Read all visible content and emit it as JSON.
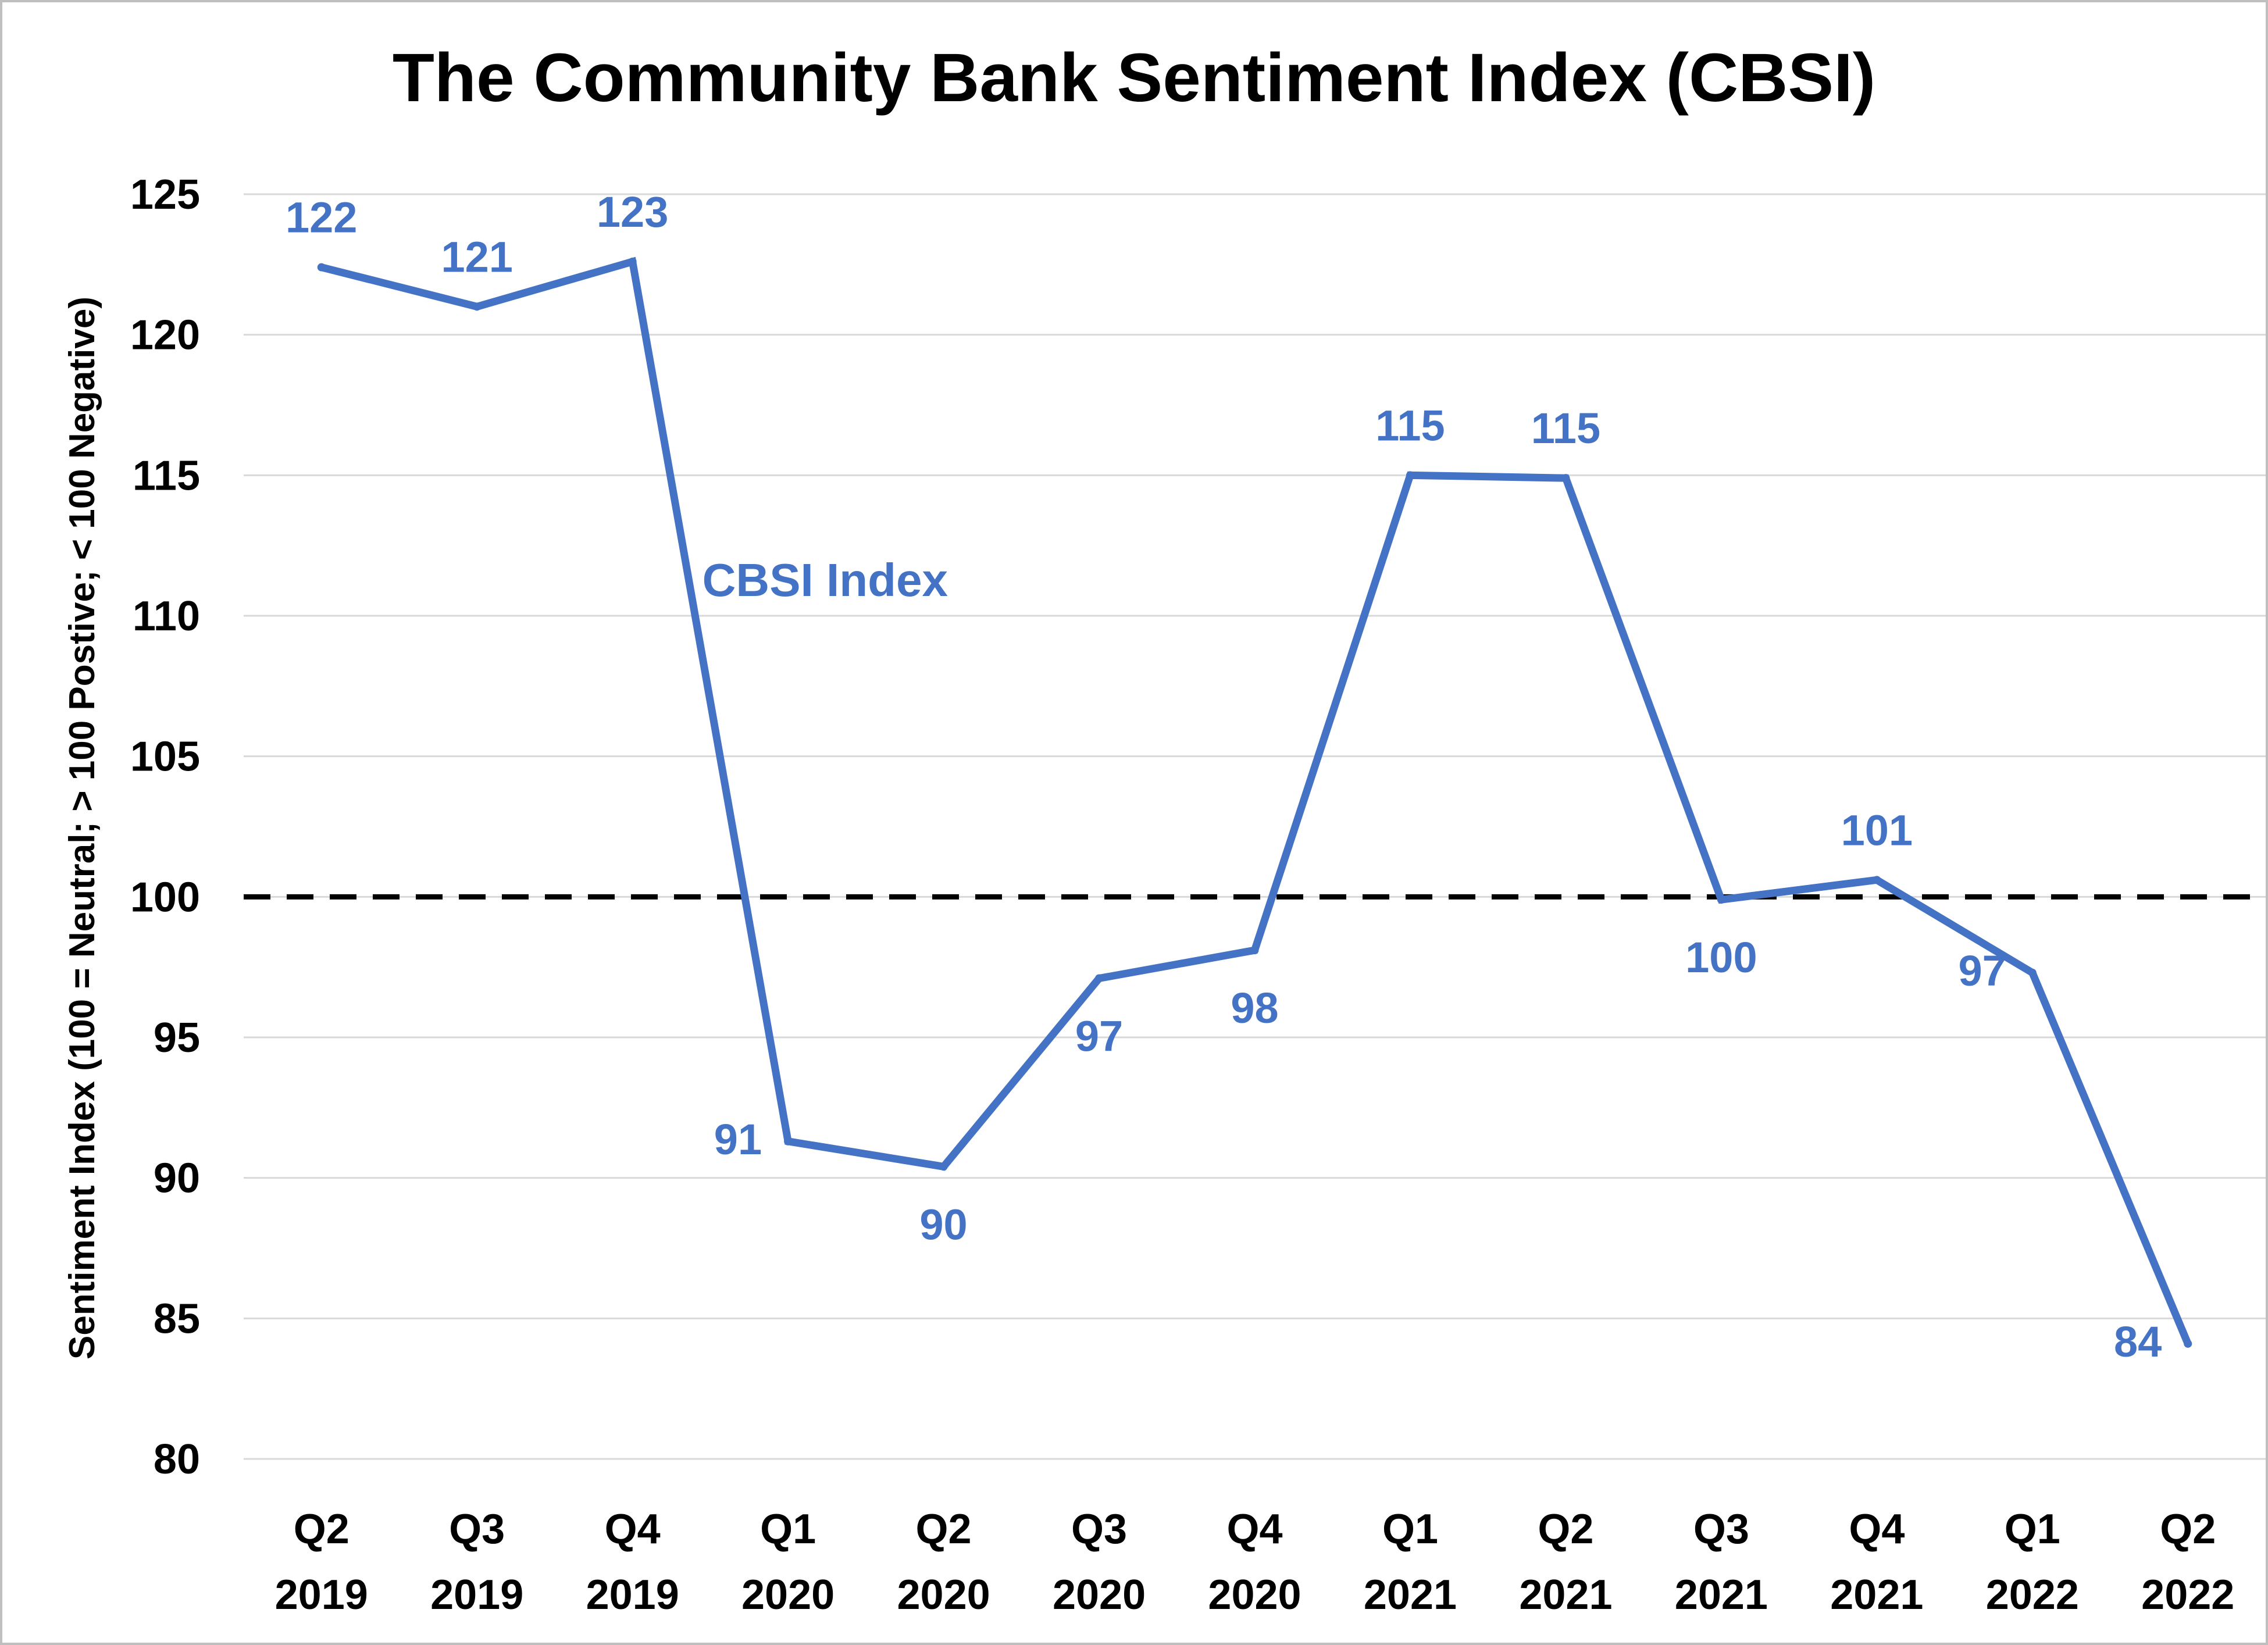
{
  "chart_data": {
    "type": "line",
    "title": "The Community Bank Sentiment Index (CBSI)",
    "ylabel": "Sentiment Index (100 = Neutral; > 100 Postive; < 100 Negative)",
    "xlabel": "",
    "ylim": [
      80,
      125
    ],
    "yticks": [
      80,
      85,
      90,
      95,
      100,
      105,
      110,
      115,
      120,
      125
    ],
    "grid": true,
    "categories": [
      [
        "Q2",
        "2019"
      ],
      [
        "Q3",
        "2019"
      ],
      [
        "Q4",
        "2019"
      ],
      [
        "Q1",
        "2020"
      ],
      [
        "Q2",
        "2020"
      ],
      [
        "Q3",
        "2020"
      ],
      [
        "Q4",
        "2020"
      ],
      [
        "Q1",
        "2021"
      ],
      [
        "Q2",
        "2021"
      ],
      [
        "Q3",
        "2021"
      ],
      [
        "Q4",
        "2021"
      ],
      [
        "Q1",
        "2022"
      ],
      [
        "Q2",
        "2022"
      ]
    ],
    "series": [
      {
        "name": "CBSI Index",
        "color": "#4472c4",
        "values": [
          122.4,
          121.0,
          122.6,
          91.3,
          90.4,
          97.1,
          98.1,
          115.0,
          114.9,
          99.9,
          100.6,
          97.3,
          84.1
        ],
        "labels": [
          "122",
          "121",
          "123",
          "91",
          "90",
          "97",
          "98",
          "115",
          "115",
          "100",
          "101",
          "97",
          "84"
        ],
        "label_positions": [
          "above",
          "above",
          "above",
          "left",
          "below",
          "below",
          "below",
          "above",
          "above",
          "below",
          "above",
          "left",
          "left"
        ]
      }
    ],
    "reference_line": {
      "value": 100,
      "style": "dashed",
      "color": "#000000"
    }
  }
}
